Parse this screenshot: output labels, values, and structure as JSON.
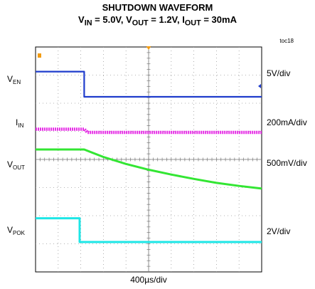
{
  "chart_data": {
    "type": "line",
    "title": "SHUTDOWN WAVEFORM",
    "subtitle": {
      "vin_sym": "V",
      "vin_sub": "IN",
      "vin_val": " = 5.0V, ",
      "vout_sym": "V",
      "vout_sub": "OUT",
      "vout_val": " = 1.2V, ",
      "iout_sym": "I",
      "iout_sub": "OUT",
      "iout_val": " = 30mA"
    },
    "tag": "toc18",
    "xlabel": "400µs/div",
    "x_unit": "div",
    "xlim": [
      0,
      10
    ],
    "y_div_range": [
      0,
      8
    ],
    "grid": true,
    "trigger_marker_x": 5,
    "colors": {
      "ven": "#1f3ccc",
      "iin": "#e62ee6",
      "vout": "#33e633",
      "vpok": "#1ee6e6"
    },
    "series": [
      {
        "key": "ven",
        "sym": "V",
        "sub": "EN",
        "scale": "5V/div",
        "x": [
          0,
          2.15,
          2.15,
          10
        ],
        "y": [
          5.0,
          5.0,
          0.0,
          0.0
        ]
      },
      {
        "key": "iin",
        "sym": "I",
        "sub": "IN",
        "scale": "200mA/div",
        "x": [
          0,
          2.15,
          2.3,
          10
        ],
        "y": [
          0.03,
          0.03,
          0.0,
          0.0
        ]
      },
      {
        "key": "vout",
        "sym": "V",
        "sub": "OUT",
        "scale": "500mV/div",
        "x": [
          0,
          2.15,
          3,
          4,
          5,
          6,
          7,
          8,
          9,
          10
        ],
        "y": [
          1.2,
          1.2,
          1.03,
          0.87,
          0.74,
          0.63,
          0.53,
          0.44,
          0.37,
          0.31
        ]
      },
      {
        "key": "vpok",
        "sym": "V",
        "sub": "POK",
        "scale": "2V/div",
        "x": [
          0,
          1.95,
          1.95,
          10
        ],
        "y": [
          1.9,
          1.9,
          0.0,
          0.0
        ]
      }
    ]
  }
}
